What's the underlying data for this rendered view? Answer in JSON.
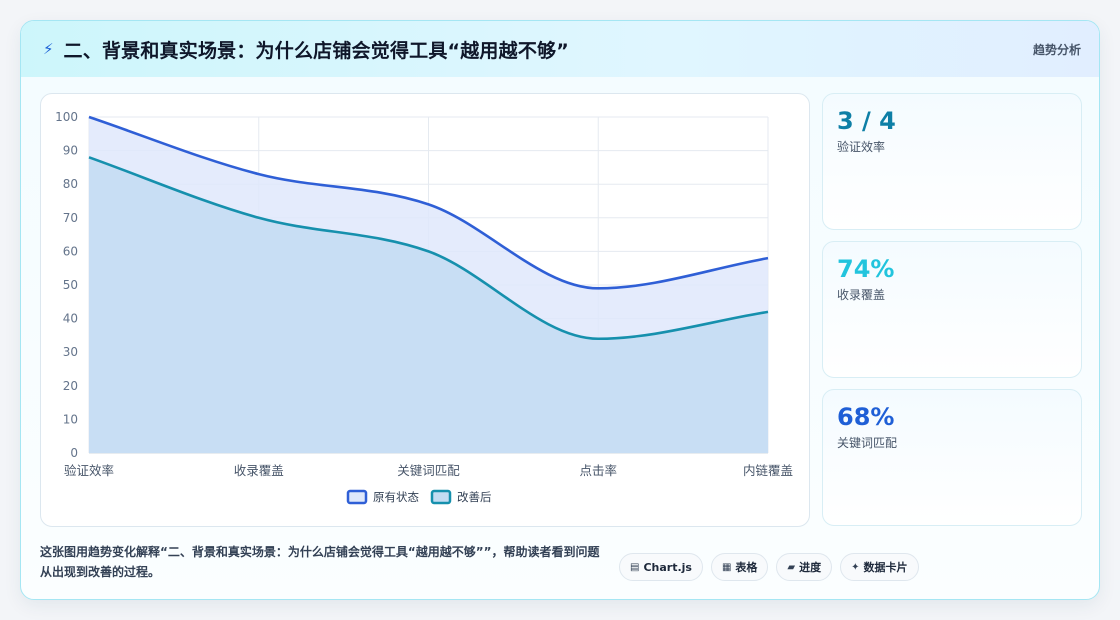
{
  "header": {
    "title": "二、背景和真实场景：为什么店铺会觉得工具“越用越不够”",
    "tag": "趋势分析",
    "title_icon": "lightning-icon"
  },
  "kpis": [
    {
      "value": "3 / 4",
      "label": "验证效率",
      "color": "#0e7fa6"
    },
    {
      "value": "74%",
      "label": "收录覆盖",
      "color": "#22c4dd"
    },
    {
      "value": "68%",
      "label": "关键词匹配",
      "color": "#1f5fd6"
    }
  ],
  "footer": {
    "description": "这张图用趋势变化解释“二、背景和真实场景：为什么店铺会觉得工具“越用越不够””，帮助读者看到问题从出现到改善的过程。",
    "chips": [
      {
        "label": "Chart.js",
        "icon": "chart-icon"
      },
      {
        "label": "表格",
        "icon": "table-icon"
      },
      {
        "label": "进度",
        "icon": "progress-icon"
      },
      {
        "label": "数据卡片",
        "icon": "sparkle-icon"
      }
    ]
  },
  "chart_data": {
    "type": "area",
    "categories": [
      "验证效率",
      "收录覆盖",
      "关键词匹配",
      "点击率",
      "内链覆盖"
    ],
    "series": [
      {
        "name": "原有状态",
        "values": [
          100,
          83,
          74,
          49,
          58
        ],
        "color": "#2f5fd6",
        "fill": "#dfe8fb"
      },
      {
        "name": "改善后",
        "values": [
          88,
          70,
          60,
          34,
          42
        ],
        "color": "#1690ad",
        "fill": "#c3dcf2"
      }
    ],
    "ylim": [
      0,
      100
    ],
    "yticks": [
      0,
      10,
      20,
      30,
      40,
      50,
      60,
      70,
      80,
      90,
      100
    ],
    "grid": true,
    "legend": "bottom"
  }
}
